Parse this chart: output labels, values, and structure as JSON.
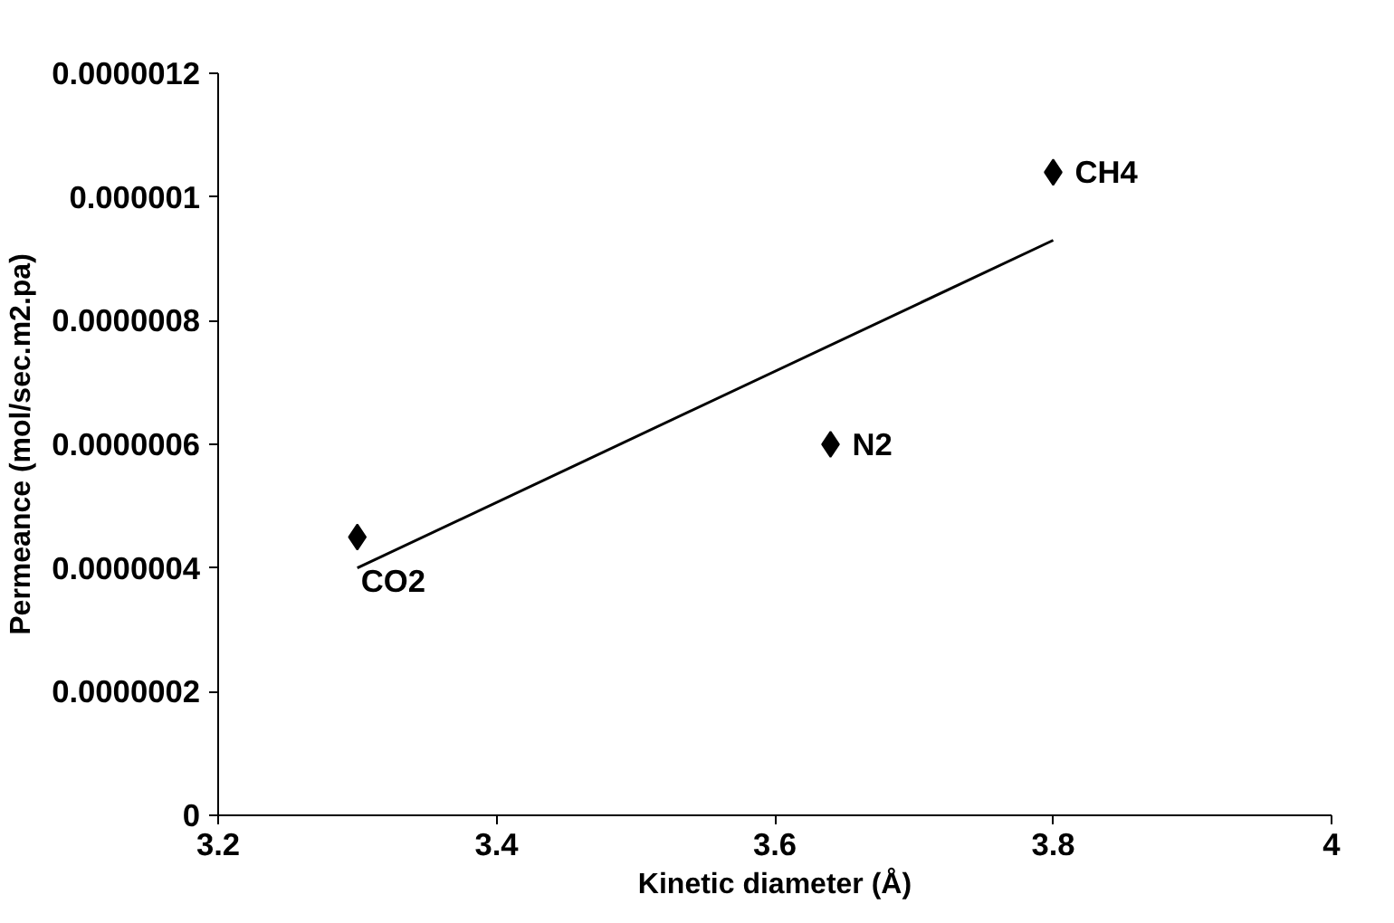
{
  "chart_data": {
    "type": "scatter",
    "xlabel": "Kinetic diameter (Å)",
    "ylabel": "Permeance (mol/sec.m2.pa)",
    "xlim": [
      3.2,
      4
    ],
    "xticks": [
      3.2,
      3.4,
      3.6,
      3.8,
      4
    ],
    "ylim": [
      0,
      1.2e-06
    ],
    "yticks": [
      0,
      {
        "value": 2e-07,
        "label": "0.0000002"
      },
      {
        "value": 4e-07,
        "label": "0.0000004"
      },
      {
        "value": 6e-07,
        "label": "0.0000006"
      },
      {
        "value": 8e-07,
        "label": "0.0000008"
      },
      {
        "value": 1e-06,
        "label": "0.000001"
      },
      {
        "value": 1.2e-06,
        "label": "0.0000012"
      }
    ],
    "grid": false,
    "series": [
      {
        "color": "#000000",
        "marker": "diamond",
        "x": [
          3.3,
          3.64,
          3.8
        ],
        "values": [
          4.5e-07,
          6e-07,
          1.04e-06
        ]
      },
      {
        "type": "line",
        "color": "#000000",
        "x": [
          3.3,
          3.8
        ],
        "values": [
          4e-07,
          9.3e-07
        ],
        "line_style": "solid",
        "marker": "none"
      }
    ],
    "annotations": [
      {
        "text": "CO2",
        "x": 3.3,
        "y": 4.5e-07
      },
      {
        "text": "N2",
        "x": 3.64,
        "y": 6e-07
      },
      {
        "text": "CH4",
        "x": 3.8,
        "y": 1.04e-06
      }
    ]
  }
}
